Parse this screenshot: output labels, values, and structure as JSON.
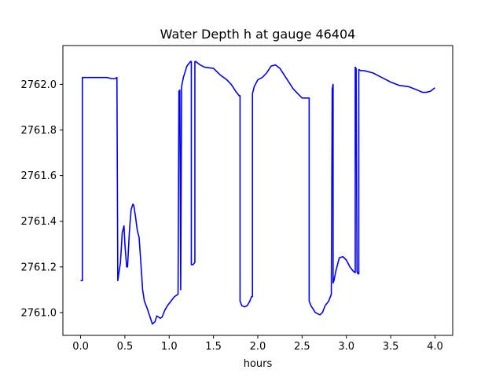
{
  "chart_data": {
    "type": "line",
    "title": "Water Depth h at gauge 46404",
    "xlabel": "hours",
    "ylabel": "",
    "xlim": [
      -0.2,
      4.2
    ],
    "ylim": [
      2760.9,
      2762.17
    ],
    "xticks": [
      0.0,
      0.5,
      1.0,
      1.5,
      2.0,
      2.5,
      3.0,
      3.5,
      4.0
    ],
    "xtick_labels": [
      "0.0",
      "0.5",
      "1.0",
      "1.5",
      "2.0",
      "2.5",
      "3.0",
      "3.5",
      "4.0"
    ],
    "yticks": [
      2761.0,
      2761.2,
      2761.4,
      2761.6,
      2761.8,
      2762.0
    ],
    "ytick_labels": [
      "2761.0",
      "2761.2",
      "2761.4",
      "2761.6",
      "2761.8",
      "2762.0"
    ],
    "grid": false,
    "line_color": "#0000ff",
    "series": [
      {
        "name": "",
        "x": [
          0.0,
          0.02,
          0.02,
          0.05,
          0.1,
          0.2,
          0.3,
          0.35,
          0.39,
          0.41,
          0.41,
          0.42,
          0.45,
          0.47,
          0.49,
          0.5,
          0.52,
          0.53,
          0.55,
          0.57,
          0.59,
          0.6,
          0.62,
          0.64,
          0.66,
          0.68,
          0.7,
          0.72,
          0.75,
          0.78,
          0.81,
          0.84,
          0.86,
          0.88,
          0.9,
          0.92,
          0.95,
          0.98,
          1.02,
          1.06,
          1.1,
          1.11,
          1.12,
          1.13,
          1.13,
          1.14,
          1.15,
          1.16,
          1.2,
          1.24,
          1.25,
          1.25,
          1.27,
          1.29,
          1.29,
          1.3,
          1.35,
          1.4,
          1.5,
          1.58,
          1.65,
          1.7,
          1.75,
          1.79,
          1.8,
          1.8,
          1.82,
          1.85,
          1.88,
          1.91,
          1.93,
          1.94,
          1.94,
          1.96,
          2.0,
          2.05,
          2.1,
          2.15,
          2.2,
          2.25,
          2.3,
          2.35,
          2.4,
          2.45,
          2.5,
          2.55,
          2.58,
          2.58,
          2.6,
          2.65,
          2.7,
          2.73,
          2.76,
          2.8,
          2.83,
          2.84,
          2.85,
          2.85,
          2.86,
          2.88,
          2.92,
          2.96,
          3.0,
          3.04,
          3.08,
          3.1,
          3.1,
          3.11,
          3.12,
          3.13,
          3.14,
          3.14,
          3.16,
          3.2,
          3.3,
          3.4,
          3.5,
          3.6,
          3.7,
          3.8,
          3.86,
          3.9,
          3.95,
          4.0
        ],
        "y": [
          2761.14,
          2761.14,
          2762.03,
          2762.03,
          2762.03,
          2762.03,
          2762.03,
          2762.025,
          2762.025,
          2762.03,
          2762.03,
          2761.14,
          2761.22,
          2761.35,
          2761.38,
          2761.3,
          2761.2,
          2761.2,
          2761.35,
          2761.45,
          2761.475,
          2761.47,
          2761.42,
          2761.36,
          2761.33,
          2761.22,
          2761.1,
          2761.05,
          2761.02,
          2760.985,
          2760.95,
          2760.96,
          2760.985,
          2760.98,
          2760.975,
          2760.98,
          2761.01,
          2761.03,
          2761.05,
          2761.07,
          2761.08,
          2761.97,
          2761.975,
          2761.1,
          2761.1,
          2761.99,
          2762.01,
          2762.03,
          2762.08,
          2762.1,
          2762.1,
          2761.21,
          2761.21,
          2761.22,
          2762.1,
          2762.1,
          2762.085,
          2762.075,
          2762.07,
          2762.04,
          2762.02,
          2762.0,
          2761.97,
          2761.95,
          2761.95,
          2761.05,
          2761.03,
          2761.025,
          2761.03,
          2761.05,
          2761.07,
          2761.07,
          2761.96,
          2761.99,
          2762.02,
          2762.03,
          2762.05,
          2762.08,
          2762.085,
          2762.07,
          2762.04,
          2762.01,
          2761.98,
          2761.96,
          2761.94,
          2761.94,
          2761.94,
          2761.05,
          2761.03,
          2761.0,
          2760.99,
          2761.0,
          2761.03,
          2761.05,
          2761.08,
          2761.98,
          2762.0,
          2761.13,
          2761.14,
          2761.18,
          2761.24,
          2761.245,
          2761.23,
          2761.2,
          2761.18,
          2761.175,
          2762.075,
          2762.07,
          2761.18,
          2761.17,
          2761.17,
          2762.065,
          2762.06,
          2762.06,
          2762.05,
          2762.03,
          2762.01,
          2761.995,
          2761.99,
          2761.975,
          2761.965,
          2761.965,
          2761.97,
          2761.985
        ]
      }
    ]
  }
}
